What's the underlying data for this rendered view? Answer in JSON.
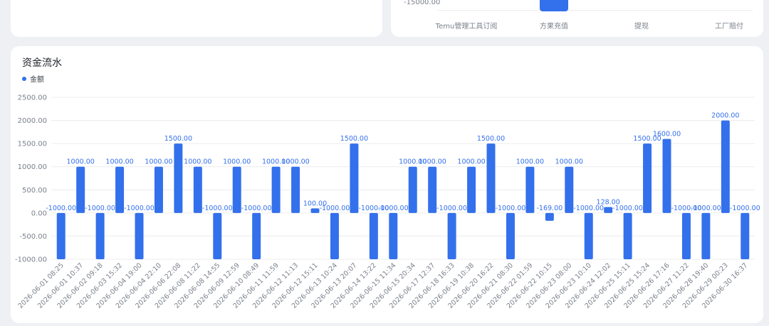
{
  "top_panel": {
    "axis_label": "-15000.00",
    "categories": [
      "Temu管理工具订阅",
      "方果充值",
      "提现",
      "工厂赔付"
    ]
  },
  "main_panel": {
    "title": "资金流水",
    "legend": "金额"
  },
  "colors": {
    "bar": "#3370eb",
    "label": "#3370eb",
    "axis_text": "#7a808a",
    "grid": "#ececef"
  },
  "chart_data": {
    "type": "bar",
    "title": "资金流水",
    "xlabel": "",
    "ylabel": "",
    "ylim": [
      -1000,
      2500
    ],
    "yticks": [
      "2500.00",
      "2000.00",
      "1500.00",
      "1000.00",
      "500.00",
      "0.00",
      "-500.00",
      "-1000.00"
    ],
    "grid": true,
    "legend_position": "top-left",
    "categories": [
      "2026-06-01 08:25",
      "2026-06-01 10:37",
      "2026-06-02 09:18",
      "2026-06-03 15:32",
      "2026-06-04 19:00",
      "2026-06-04 22:10",
      "2026-06-06 22:08",
      "2026-06-08 11:22",
      "2026-06-08 14:55",
      "2026-06-09 12:59",
      "2026-06-10 08:49",
      "2026-06-11 11:59",
      "2026-06-12 11:13",
      "2026-06-12 15:11",
      "2026-06-13 10:24",
      "2026-06-13 20:07",
      "2026-06-14 13:22",
      "2026-06-15 11:34",
      "2026-06-15 20:34",
      "2026-06-17 12:37",
      "2026-06-18 16:33",
      "2026-06-19 10:38",
      "2026-06-20 16:22",
      "2026-06-21 08:30",
      "2026-06-22 01:59",
      "2026-06-22 10:15",
      "2026-06-23 08:00",
      "2026-06-23 10:10",
      "2026-06-24 12:02",
      "2026-06-25 15:11",
      "2026-06-25 15:24",
      "2026-06-26 17:16",
      "2026-06-27 11:22",
      "2026-06-28 19:40",
      "2026-06-29 00:23",
      "2026-06-30 16:37"
    ],
    "series": [
      {
        "name": "金额",
        "values": [
          -1000,
          1000,
          -1000,
          1000,
          -1000,
          1000,
          1500,
          1000,
          -1000,
          1000,
          -1000,
          1000,
          1000,
          100,
          -1000,
          1500,
          -1000,
          -1000,
          1000,
          1000,
          -1000,
          1000,
          1500,
          -1000,
          1000,
          -169,
          1000,
          -1000,
          128,
          -1000,
          1500,
          1600,
          -1000,
          -1000,
          2000,
          -1000
        ],
        "labels": [
          "-1000.00",
          "1000.00",
          "-1000.00",
          "1000.00",
          "-1000.00",
          "1000.00",
          "1500.00",
          "1000.00",
          "-1000.00",
          "1000.00",
          "-1000.00",
          "1000.00",
          "1000.00",
          "100.00",
          "-1000.00",
          "1500.00",
          "-1000.00",
          "-1000.00",
          "1000.00",
          "1000.00",
          "-1000.00",
          "1000.00",
          "1500.00",
          "-1000.00",
          "1000.00",
          "-169.00",
          "1000.00",
          "-1000.00",
          "128.00",
          "-1000.00",
          "1500.00",
          "1600.00",
          "-1000.00",
          "-1000.00",
          "2000.00",
          "-1000.00"
        ]
      }
    ]
  }
}
